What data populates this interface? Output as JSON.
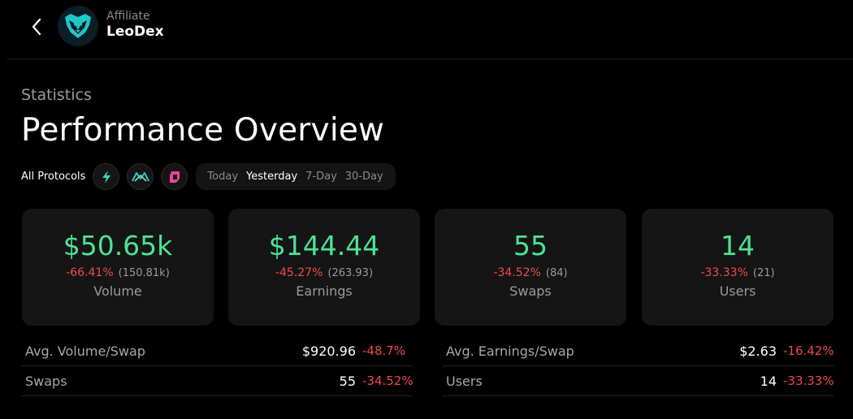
{
  "header": {
    "subtitle": "Affiliate",
    "name": "LeoDex"
  },
  "page": {
    "section": "Statistics",
    "title": "Performance Overview"
  },
  "filters": {
    "all_protocols": "All Protocols",
    "protocols": [
      {
        "icon": "thorchain-icon",
        "color": "#2fd8c4"
      },
      {
        "icon": "mayachain-icon",
        "color": "#33c3c0"
      },
      {
        "icon": "chainflip-icon",
        "color": "#e6479a"
      }
    ],
    "periods": [
      "Today",
      "Yesterday",
      "7-Day",
      "30-Day"
    ],
    "selected_period": "Yesterday"
  },
  "cards": [
    {
      "value": "$50.65k",
      "change": "-66.41%",
      "previous": "(150.81k)",
      "label": "Volume"
    },
    {
      "value": "$144.44",
      "change": "-45.27%",
      "previous": "(263.93)",
      "label": "Earnings"
    },
    {
      "value": "55",
      "change": "-34.52%",
      "previous": "(84)",
      "label": "Swaps"
    },
    {
      "value": "14",
      "change": "-33.33%",
      "previous": "(21)",
      "label": "Users"
    }
  ],
  "stats_left": [
    {
      "name": "Avg. Volume/Swap",
      "value": "$920.96",
      "change": "-48.7%"
    },
    {
      "name": "Swaps",
      "value": "55",
      "change": "-34.52%"
    }
  ],
  "stats_right": [
    {
      "name": "Avg. Earnings/Swap",
      "value": "$2.63",
      "change": "-16.42%"
    },
    {
      "name": "Users",
      "value": "14",
      "change": "-33.33%"
    }
  ],
  "colors": {
    "positive": "#4be394",
    "negative": "#f04a4a",
    "card_bg": "#151515"
  }
}
